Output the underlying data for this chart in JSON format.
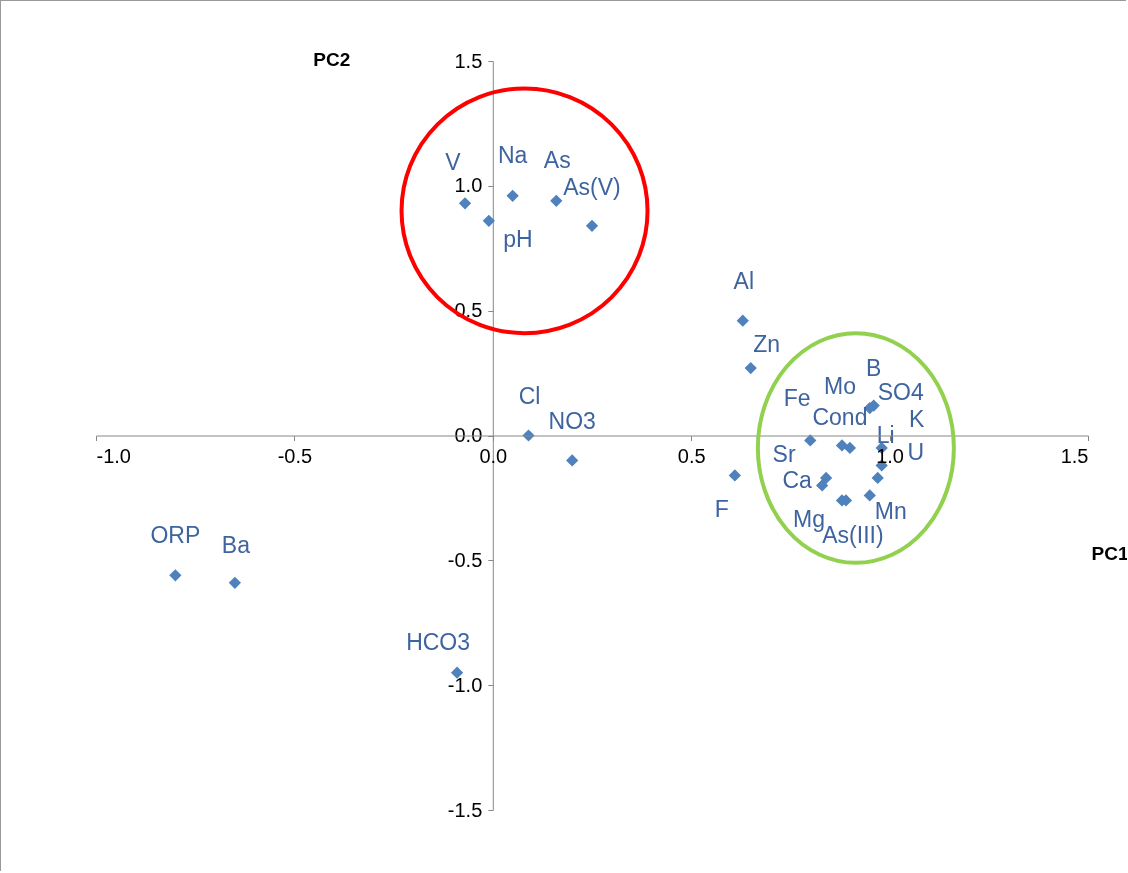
{
  "chart_data": {
    "type": "scatter",
    "xlabel": "PC1",
    "ylabel": "PC2",
    "xlim": [
      -1,
      1.5
    ],
    "ylim": [
      -1.5,
      1.5
    ],
    "xticks": [
      {
        "value": -1,
        "label": "-1.0"
      },
      {
        "value": -0.5,
        "label": "-0.5"
      },
      {
        "value": 0,
        "label": "0.0"
      },
      {
        "value": 0.5,
        "label": "0.5"
      },
      {
        "value": 1,
        "label": "1.0"
      },
      {
        "value": 1.5,
        "label": "1.5"
      }
    ],
    "yticks": [
      {
        "value": -1.5,
        "label": "-1.5"
      },
      {
        "value": -1,
        "label": "-1.0"
      },
      {
        "value": -0.5,
        "label": "-0.5"
      },
      {
        "value": 0,
        "label": "0.0"
      },
      {
        "value": 0.5,
        "label": "0.5"
      },
      {
        "value": 1,
        "label": "1.0"
      },
      {
        "value": 1.5,
        "label": "1.5"
      }
    ],
    "grid": false,
    "marker": "diamond",
    "series": [
      {
        "color": "#4f81bd",
        "x": [
          -0.07,
          -0.01,
          0.05,
          0.16,
          0.25,
          0.63,
          0.65,
          0.09,
          0.2,
          0.61,
          -0.8,
          -0.65,
          -0.09,
          0.96,
          0.95,
          0.88,
          0.9,
          0.8,
          0.98,
          0.98,
          0.97,
          0.84,
          0.83,
          0.88,
          0.89,
          0.95
        ],
        "values": [
          0.93,
          0.86,
          0.96,
          0.94,
          0.84,
          0.46,
          0.27,
          0.0,
          -0.1,
          -0.16,
          -0.56,
          -0.59,
          -0.95,
          0.12,
          0.11,
          -0.04,
          -0.05,
          -0.02,
          -0.12,
          -0.05,
          -0.17,
          -0.17,
          -0.2,
          -0.26,
          -0.26,
          -0.24
        ]
      }
    ],
    "annotations": [
      {
        "text": "V",
        "x": -0.07,
        "y": 0.93
      },
      {
        "text": "pH",
        "x": -0.01,
        "y": 0.86
      },
      {
        "text": "Na",
        "x": 0.05,
        "y": 0.96
      },
      {
        "text": "As",
        "x": 0.16,
        "y": 0.94
      },
      {
        "text": "As(V)",
        "x": 0.25,
        "y": 0.84
      },
      {
        "text": "Al",
        "x": 0.63,
        "y": 0.46
      },
      {
        "text": "Zn",
        "x": 0.65,
        "y": 0.27
      },
      {
        "text": "Cl",
        "x": 0.09,
        "y": 0.0
      },
      {
        "text": "NO3",
        "x": 0.2,
        "y": -0.1
      },
      {
        "text": "F",
        "x": 0.61,
        "y": -0.16
      },
      {
        "text": "ORP",
        "x": -0.8,
        "y": -0.56
      },
      {
        "text": "Ba",
        "x": -0.65,
        "y": -0.59
      },
      {
        "text": "HCO3",
        "x": -0.09,
        "y": -0.95
      },
      {
        "text": "B",
        "x": 0.96,
        "y": 0.12
      },
      {
        "text": "SO4",
        "x": 0.95,
        "y": 0.11
      },
      {
        "text": "Mo",
        "x": 0.88,
        "y": -0.04
      },
      {
        "text": "Cond",
        "x": 0.9,
        "y": -0.05
      },
      {
        "text": "Fe",
        "x": 0.8,
        "y": -0.02
      },
      {
        "text": "K",
        "x": 0.98,
        "y": -0.12
      },
      {
        "text": "Li",
        "x": 0.98,
        "y": -0.05
      },
      {
        "text": "U",
        "x": 0.97,
        "y": -0.17
      },
      {
        "text": "Sr",
        "x": 0.84,
        "y": -0.17
      },
      {
        "text": "Ca",
        "x": 0.83,
        "y": -0.2
      },
      {
        "text": "Mg",
        "x": 0.88,
        "y": -0.26
      },
      {
        "text": "As(III)",
        "x": 0.89,
        "y": -0.26
      },
      {
        "text": "Mn",
        "x": 0.95,
        "y": -0.24
      }
    ]
  }
}
